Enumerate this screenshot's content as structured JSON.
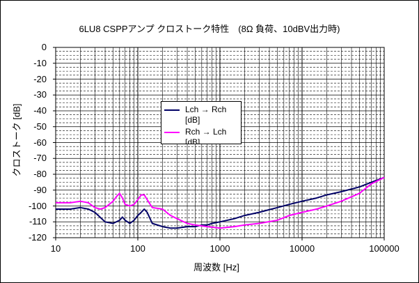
{
  "chart_data": {
    "type": "line",
    "title": "6LU8 CSPPアンプ クロストーク特性　(8Ω 負荷、10dBV出力時)",
    "xlabel": "周波数 [Hz]",
    "ylabel": "クロストーク [dB]",
    "xscale": "log",
    "xlim": [
      10,
      100000
    ],
    "ylim": [
      -120,
      0
    ],
    "x_tick_labels": [
      "10",
      "100",
      "1000",
      "10000",
      "100000"
    ],
    "y_tick_labels": [
      "0",
      "-10",
      "-20",
      "-30",
      "-40",
      "-50",
      "-60",
      "-70",
      "-80",
      "-90",
      "-100",
      "-110",
      "-120"
    ],
    "grid": true,
    "legend_position": "center-left",
    "series": [
      {
        "name": "Lch → Rch",
        "legend_unit": "[dB]",
        "color": "#000066",
        "x": [
          10,
          15,
          20,
          25,
          30,
          40,
          50,
          60,
          65,
          70,
          80,
          90,
          100,
          110,
          120,
          130,
          150,
          200,
          250,
          300,
          400,
          500,
          600,
          700,
          800,
          1000,
          1500,
          2000,
          3000,
          5000,
          7000,
          10000,
          15000,
          20000,
          30000,
          50000,
          70000,
          100000
        ],
        "values": [
          -102,
          -102,
          -101,
          -102,
          -104,
          -110,
          -111,
          -109,
          -107,
          -109,
          -111,
          -109,
          -106,
          -104,
          -102,
          -104,
          -111,
          -113,
          -114,
          -114,
          -113,
          -113,
          -112,
          -112,
          -111,
          -110,
          -108,
          -106,
          -104,
          -101,
          -99,
          -97,
          -95,
          -93,
          -91,
          -88,
          -85,
          -82
        ]
      },
      {
        "name": "Rch → Lch",
        "legend_unit": "[dB]",
        "color": "#ff00ff",
        "x": [
          10,
          15,
          20,
          25,
          30,
          35,
          40,
          50,
          55,
          60,
          65,
          70,
          80,
          90,
          100,
          110,
          120,
          130,
          150,
          200,
          250,
          300,
          400,
          500,
          700,
          1000,
          1500,
          2000,
          3000,
          5000,
          7000,
          10000,
          15000,
          20000,
          30000,
          50000,
          70000,
          100000
        ],
        "values": [
          -98,
          -98,
          -97,
          -98,
          -101,
          -102,
          -101,
          -97,
          -94,
          -92,
          -95,
          -99,
          -100,
          -99,
          -96,
          -93,
          -93,
          -96,
          -101,
          -102,
          -106,
          -108,
          -111,
          -112,
          -113,
          -114,
          -113,
          -112,
          -111,
          -109,
          -106,
          -104,
          -102,
          -100,
          -97,
          -92,
          -86,
          -82
        ]
      }
    ]
  }
}
